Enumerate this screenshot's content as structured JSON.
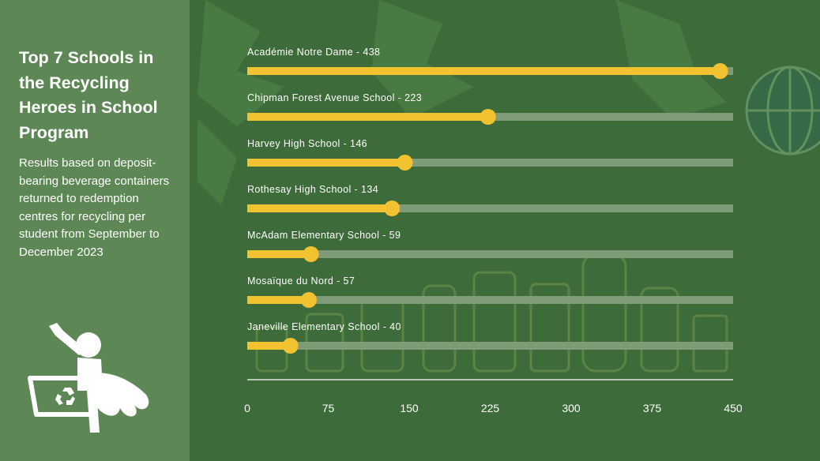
{
  "title": "Top 7 Schools in the Recycling Heroes in School Program",
  "subtitle": "Results based on deposit-bearing beverage containers returned to redemption centres for recycling per student from September to December 2023",
  "colors": {
    "background": "#3d6b3a",
    "sidebar": "#7aa06e",
    "bar_fill": "#f2c230",
    "bar_track": "#7f9b78",
    "text": "#ffffff"
  },
  "icons": [
    "recycling-hero-icon",
    "recycle-symbol-icon"
  ],
  "chart_data": {
    "type": "bar",
    "orientation": "horizontal",
    "categories": [
      "Académie Notre Dame",
      "Chipman Forest Avenue School",
      "Harvey High School",
      "Rothesay High School",
      "McAdam Elementary School",
      "Mosaïque du Nord",
      "Janeville Elementary School"
    ],
    "values": [
      438,
      223,
      146,
      134,
      59,
      57,
      40
    ],
    "labels": [
      "Académie Notre Dame - 438",
      "Chipman Forest Avenue School - 223",
      "Harvey High School - 146",
      "Rothesay High School - 134",
      "McAdam Elementary School - 59",
      "Mosaïque du Nord - 57",
      "Janeville Elementary School - 40"
    ],
    "xlim": [
      0,
      450
    ],
    "xticks": [
      0,
      75,
      150,
      225,
      300,
      375,
      450
    ],
    "grid": false,
    "legend": "none"
  }
}
